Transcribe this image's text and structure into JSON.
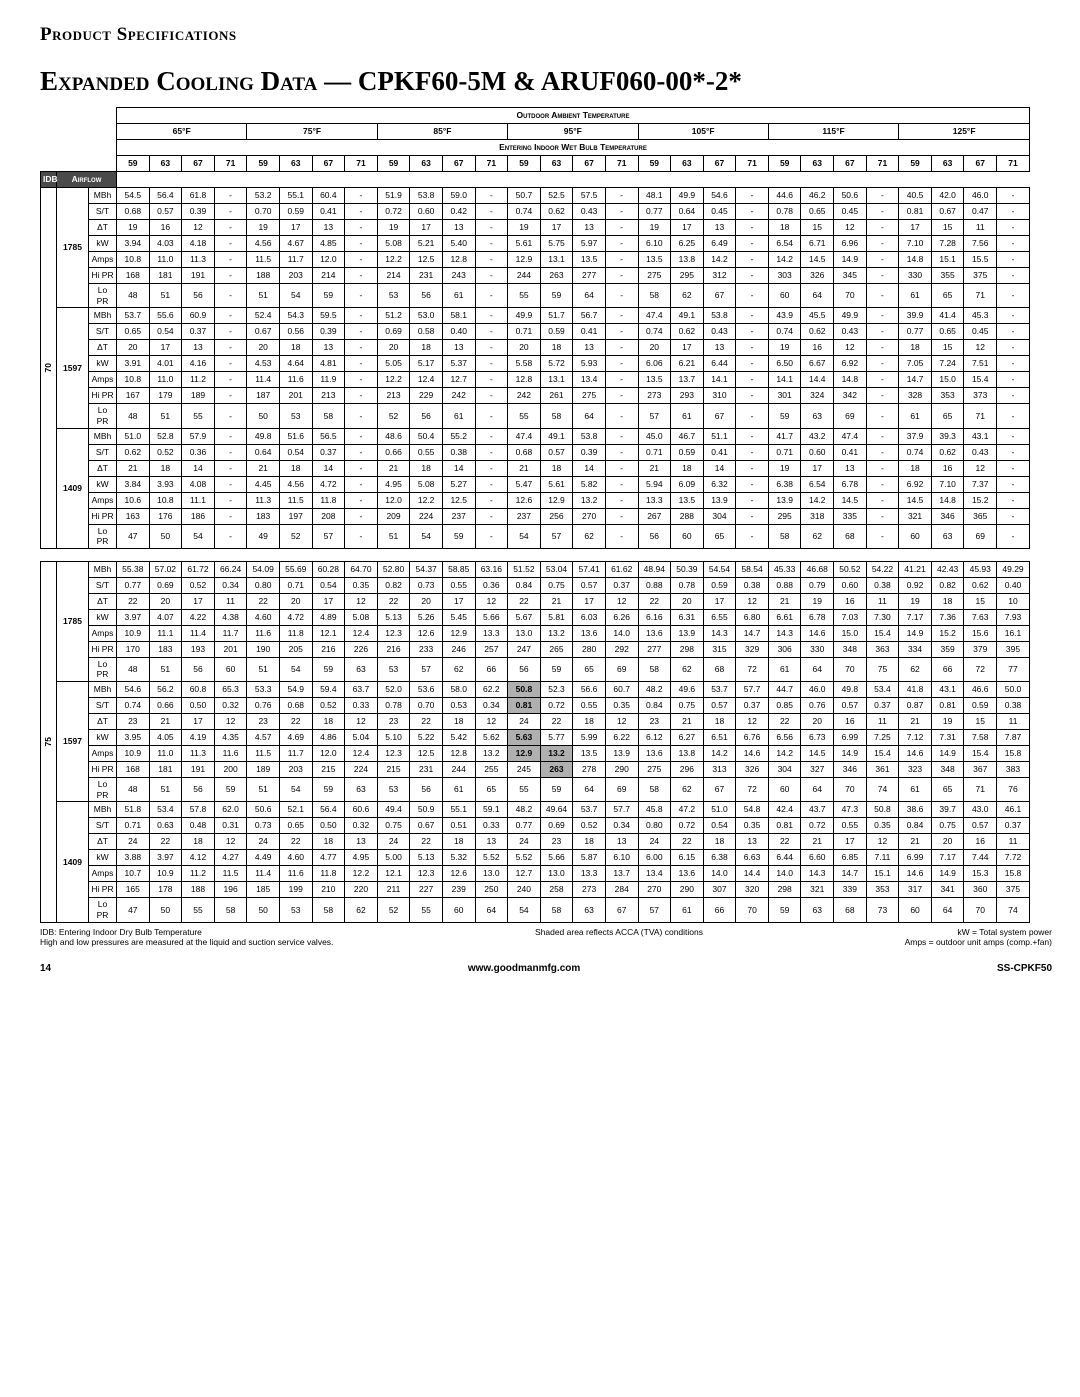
{
  "page_header": "Product Specifications",
  "title": "Expanded Cooling Data — CPKF60-5M & ARUF060-00*-2*",
  "footer_page": "14",
  "footer_site": "www.goodmanmfg.com",
  "footer_model": "SS-CPKF50",
  "outdoor_header": "Outdoor Ambient Temperature",
  "temps": [
    "65°F",
    "75°F",
    "85°F",
    "95°F",
    "105°F",
    "115°F",
    "125°F"
  ],
  "wet_header": "Entering Indoor Wet Bulb Temperature",
  "sub": [
    "59",
    "63",
    "67",
    "71"
  ],
  "rowlabels": [
    "MBh",
    "S/T",
    "ΔT",
    "kW",
    "Amps",
    "Hi PR",
    "Lo PR"
  ],
  "airflows": [
    "1785",
    "1597",
    "1409"
  ],
  "idb1": "70",
  "idb2": "75",
  "notes_left1": "IDB: Entering Indoor Dry Bulb Temperature",
  "notes_left2": "High and low pressures are measured at the liquid and suction service valves.",
  "notes_mid": "Shaded area reflects ACCA (TVA) conditions",
  "notes_right1": "kW = Total system power",
  "notes_right2": "Amps = outdoor unit amps (comp.+fan)",
  "colors": {
    "dark": "#4a4a4a",
    "shade": "#b0b0b0"
  },
  "t70": [
    [
      [
        "54.5",
        "56.4",
        "61.8",
        "-",
        "53.2",
        "55.1",
        "60.4",
        "-",
        "51.9",
        "53.8",
        "59.0",
        "-",
        "50.7",
        "52.5",
        "57.5",
        "-",
        "48.1",
        "49.9",
        "54.6",
        "-",
        "44.6",
        "46.2",
        "50.6",
        "-",
        "40.5",
        "42.0",
        "46.0",
        "-"
      ],
      [
        "0.68",
        "0.57",
        "0.39",
        "-",
        "0.70",
        "0.59",
        "0.41",
        "-",
        "0.72",
        "0.60",
        "0.42",
        "-",
        "0.74",
        "0.62",
        "0.43",
        "-",
        "0.77",
        "0.64",
        "0.45",
        "-",
        "0.78",
        "0.65",
        "0.45",
        "-",
        "0.81",
        "0.67",
        "0.47",
        "-"
      ],
      [
        "19",
        "16",
        "12",
        "-",
        "19",
        "17",
        "13",
        "-",
        "19",
        "17",
        "13",
        "-",
        "19",
        "17",
        "13",
        "-",
        "19",
        "17",
        "13",
        "-",
        "18",
        "15",
        "12",
        "-",
        "17",
        "15",
        "11",
        "-"
      ],
      [
        "3.94",
        "4.03",
        "4.18",
        "-",
        "4.56",
        "4.67",
        "4.85",
        "-",
        "5.08",
        "5.21",
        "5.40",
        "-",
        "5.61",
        "5.75",
        "5.97",
        "-",
        "6.10",
        "6.25",
        "6.49",
        "-",
        "6.54",
        "6.71",
        "6.96",
        "-",
        "7.10",
        "7.28",
        "7.56",
        "-"
      ],
      [
        "10.8",
        "11.0",
        "11.3",
        "-",
        "11.5",
        "11.7",
        "12.0",
        "-",
        "12.2",
        "12.5",
        "12.8",
        "-",
        "12.9",
        "13.1",
        "13.5",
        "-",
        "13.5",
        "13.8",
        "14.2",
        "-",
        "14.2",
        "14.5",
        "14.9",
        "-",
        "14.8",
        "15.1",
        "15.5",
        "-"
      ],
      [
        "168",
        "181",
        "191",
        "-",
        "188",
        "203",
        "214",
        "-",
        "214",
        "231",
        "243",
        "-",
        "244",
        "263",
        "277",
        "-",
        "275",
        "295",
        "312",
        "-",
        "303",
        "326",
        "345",
        "-",
        "330",
        "355",
        "375",
        "-"
      ],
      [
        "48",
        "51",
        "56",
        "-",
        "51",
        "54",
        "59",
        "-",
        "53",
        "56",
        "61",
        "-",
        "55",
        "59",
        "64",
        "-",
        "58",
        "62",
        "67",
        "-",
        "60",
        "64",
        "70",
        "-",
        "61",
        "65",
        "71",
        "-"
      ]
    ],
    [
      [
        "53.7",
        "55.6",
        "60.9",
        "-",
        "52.4",
        "54.3",
        "59.5",
        "-",
        "51.2",
        "53.0",
        "58.1",
        "-",
        "49.9",
        "51.7",
        "56.7",
        "-",
        "47.4",
        "49.1",
        "53.8",
        "-",
        "43.9",
        "45.5",
        "49.9",
        "-",
        "39.9",
        "41.4",
        "45.3",
        "-"
      ],
      [
        "0.65",
        "0.54",
        "0.37",
        "-",
        "0.67",
        "0.56",
        "0.39",
        "-",
        "0.69",
        "0.58",
        "0.40",
        "-",
        "0.71",
        "0.59",
        "0.41",
        "-",
        "0.74",
        "0.62",
        "0.43",
        "-",
        "0.74",
        "0.62",
        "0.43",
        "-",
        "0.77",
        "0.65",
        "0.45",
        "-"
      ],
      [
        "20",
        "17",
        "13",
        "-",
        "20",
        "18",
        "13",
        "-",
        "20",
        "18",
        "13",
        "-",
        "20",
        "18",
        "13",
        "-",
        "20",
        "17",
        "13",
        "-",
        "19",
        "16",
        "12",
        "-",
        "18",
        "15",
        "12",
        "-"
      ],
      [
        "3.91",
        "4.01",
        "4.16",
        "-",
        "4.53",
        "4.64",
        "4.81",
        "-",
        "5.05",
        "5.17",
        "5.37",
        "-",
        "5.58",
        "5.72",
        "5.93",
        "-",
        "6.06",
        "6.21",
        "6.44",
        "-",
        "6.50",
        "6.67",
        "6.92",
        "-",
        "7.05",
        "7.24",
        "7.51",
        "-"
      ],
      [
        "10.8",
        "11.0",
        "11.2",
        "-",
        "11.4",
        "11.6",
        "11.9",
        "-",
        "12.2",
        "12.4",
        "12.7",
        "-",
        "12.8",
        "13.1",
        "13.4",
        "-",
        "13.5",
        "13.7",
        "14.1",
        "-",
        "14.1",
        "14.4",
        "14.8",
        "-",
        "14.7",
        "15.0",
        "15.4",
        "-"
      ],
      [
        "167",
        "179",
        "189",
        "-",
        "187",
        "201",
        "213",
        "-",
        "213",
        "229",
        "242",
        "-",
        "242",
        "261",
        "275",
        "-",
        "273",
        "293",
        "310",
        "-",
        "301",
        "324",
        "342",
        "-",
        "328",
        "353",
        "373",
        "-"
      ],
      [
        "48",
        "51",
        "55",
        "-",
        "50",
        "53",
        "58",
        "-",
        "52",
        "56",
        "61",
        "-",
        "55",
        "58",
        "64",
        "-",
        "57",
        "61",
        "67",
        "-",
        "59",
        "63",
        "69",
        "-",
        "61",
        "65",
        "71",
        "-"
      ]
    ],
    [
      [
        "51.0",
        "52.8",
        "57.9",
        "-",
        "49.8",
        "51.6",
        "56.5",
        "-",
        "48.6",
        "50.4",
        "55.2",
        "-",
        "47.4",
        "49.1",
        "53.8",
        "-",
        "45.0",
        "46.7",
        "51.1",
        "-",
        "41.7",
        "43.2",
        "47.4",
        "-",
        "37.9",
        "39.3",
        "43.1",
        "-"
      ],
      [
        "0.62",
        "0.52",
        "0.36",
        "-",
        "0.64",
        "0.54",
        "0.37",
        "-",
        "0.66",
        "0.55",
        "0.38",
        "-",
        "0.68",
        "0.57",
        "0.39",
        "-",
        "0.71",
        "0.59",
        "0.41",
        "-",
        "0.71",
        "0.60",
        "0.41",
        "-",
        "0.74",
        "0.62",
        "0.43",
        "-"
      ],
      [
        "21",
        "18",
        "14",
        "-",
        "21",
        "18",
        "14",
        "-",
        "21",
        "18",
        "14",
        "-",
        "21",
        "18",
        "14",
        "-",
        "21",
        "18",
        "14",
        "-",
        "19",
        "17",
        "13",
        "-",
        "18",
        "16",
        "12",
        "-"
      ],
      [
        "3.84",
        "3.93",
        "4.08",
        "-",
        "4.45",
        "4.56",
        "4.72",
        "-",
        "4.95",
        "5.08",
        "5.27",
        "-",
        "5.47",
        "5.61",
        "5.82",
        "-",
        "5.94",
        "6.09",
        "6.32",
        "-",
        "6.38",
        "6.54",
        "6.78",
        "-",
        "6.92",
        "7.10",
        "7.37",
        "-"
      ],
      [
        "10.6",
        "10.8",
        "11.1",
        "-",
        "11.3",
        "11.5",
        "11.8",
        "-",
        "12.0",
        "12.2",
        "12.5",
        "-",
        "12.6",
        "12.9",
        "13.2",
        "-",
        "13.3",
        "13.5",
        "13.9",
        "-",
        "13.9",
        "14.2",
        "14.5",
        "-",
        "14.5",
        "14.8",
        "15.2",
        "-"
      ],
      [
        "163",
        "176",
        "186",
        "-",
        "183",
        "197",
        "208",
        "-",
        "209",
        "224",
        "237",
        "-",
        "237",
        "256",
        "270",
        "-",
        "267",
        "288",
        "304",
        "-",
        "295",
        "318",
        "335",
        "-",
        "321",
        "346",
        "365",
        "-"
      ],
      [
        "47",
        "50",
        "54",
        "-",
        "49",
        "52",
        "57",
        "-",
        "51",
        "54",
        "59",
        "-",
        "54",
        "57",
        "62",
        "-",
        "56",
        "60",
        "65",
        "-",
        "58",
        "62",
        "68",
        "-",
        "60",
        "63",
        "69",
        "-"
      ]
    ]
  ],
  "t75": [
    [
      [
        "55.38",
        "57.02",
        "61.72",
        "66.24",
        "54.09",
        "55.69",
        "60.28",
        "64.70",
        "52.80",
        "54.37",
        "58.85",
        "63.16",
        "51.52",
        "53.04",
        "57.41",
        "61.62",
        "48.94",
        "50.39",
        "54.54",
        "58.54",
        "45.33",
        "46.68",
        "50.52",
        "54.22",
        "41.21",
        "42.43",
        "45.93",
        "49.29"
      ],
      [
        "0.77",
        "0.69",
        "0.52",
        "0.34",
        "0.80",
        "0.71",
        "0.54",
        "0.35",
        "0.82",
        "0.73",
        "0.55",
        "0.36",
        "0.84",
        "0.75",
        "0.57",
        "0.37",
        "0.88",
        "0.78",
        "0.59",
        "0.38",
        "0.88",
        "0.79",
        "0.60",
        "0.38",
        "0.92",
        "0.82",
        "0.62",
        "0.40"
      ],
      [
        "22",
        "20",
        "17",
        "11",
        "22",
        "20",
        "17",
        "12",
        "22",
        "20",
        "17",
        "12",
        "22",
        "21",
        "17",
        "12",
        "22",
        "20",
        "17",
        "12",
        "21",
        "19",
        "16",
        "11",
        "19",
        "18",
        "15",
        "10"
      ],
      [
        "3.97",
        "4.07",
        "4.22",
        "4.38",
        "4.60",
        "4.72",
        "4.89",
        "5.08",
        "5.13",
        "5.26",
        "5.45",
        "5.66",
        "5.67",
        "5.81",
        "6.03",
        "6.26",
        "6.16",
        "6.31",
        "6.55",
        "6.80",
        "6.61",
        "6.78",
        "7.03",
        "7.30",
        "7.17",
        "7.36",
        "7.63",
        "7.93"
      ],
      [
        "10.9",
        "11.1",
        "11.4",
        "11.7",
        "11.6",
        "11.8",
        "12.1",
        "12.4",
        "12.3",
        "12.6",
        "12.9",
        "13.3",
        "13.0",
        "13.2",
        "13.6",
        "14.0",
        "13.6",
        "13.9",
        "14.3",
        "14.7",
        "14.3",
        "14.6",
        "15.0",
        "15.4",
        "14.9",
        "15.2",
        "15.6",
        "16.1"
      ],
      [
        "170",
        "183",
        "193",
        "201",
        "190",
        "205",
        "216",
        "226",
        "216",
        "233",
        "246",
        "257",
        "247",
        "265",
        "280",
        "292",
        "277",
        "298",
        "315",
        "329",
        "306",
        "330",
        "348",
        "363",
        "334",
        "359",
        "379",
        "395"
      ],
      [
        "48",
        "51",
        "56",
        "60",
        "51",
        "54",
        "59",
        "63",
        "53",
        "57",
        "62",
        "66",
        "56",
        "59",
        "65",
        "69",
        "58",
        "62",
        "68",
        "72",
        "61",
        "64",
        "70",
        "75",
        "62",
        "66",
        "72",
        "77"
      ]
    ],
    [
      [
        "54.6",
        "56.2",
        "60.8",
        "65.3",
        "53.3",
        "54.9",
        "59.4",
        "63.7",
        "52.0",
        "53.6",
        "58.0",
        "62.2",
        "50.8",
        "52.3",
        "56.6",
        "60.7",
        "48.2",
        "49.6",
        "53.7",
        "57.7",
        "44.7",
        "46.0",
        "49.8",
        "53.4",
        "41.8",
        "43.1",
        "46.6",
        "50.0"
      ],
      [
        "0.74",
        "0.66",
        "0.50",
        "0.32",
        "0.76",
        "0.68",
        "0.52",
        "0.33",
        "0.78",
        "0.70",
        "0.53",
        "0.34",
        "0.81",
        "0.72",
        "0.55",
        "0.35",
        "0.84",
        "0.75",
        "0.57",
        "0.37",
        "0.85",
        "0.76",
        "0.57",
        "0.37",
        "0.87",
        "0.81",
        "0.59",
        "0.38"
      ],
      [
        "23",
        "21",
        "17",
        "12",
        "23",
        "22",
        "18",
        "12",
        "23",
        "22",
        "18",
        "12",
        "24",
        "22",
        "18",
        "12",
        "23",
        "21",
        "18",
        "12",
        "22",
        "20",
        "16",
        "11",
        "21",
        "19",
        "15",
        "11"
      ],
      [
        "3.95",
        "4.05",
        "4.19",
        "4.35",
        "4.57",
        "4.69",
        "4.86",
        "5.04",
        "5.10",
        "5.22",
        "5.42",
        "5.62",
        "5.63",
        "5.77",
        "5.99",
        "6.22",
        "6.12",
        "6.27",
        "6.51",
        "6.76",
        "6.56",
        "6.73",
        "6.99",
        "7.25",
        "7.12",
        "7.31",
        "7.58",
        "7.87"
      ],
      [
        "10.9",
        "11.0",
        "11.3",
        "11.6",
        "11.5",
        "11.7",
        "12.0",
        "12.4",
        "12.3",
        "12.5",
        "12.8",
        "13.2",
        "12.9",
        "13.2",
        "13.5",
        "13.9",
        "13.6",
        "13.8",
        "14.2",
        "14.6",
        "14.2",
        "14.5",
        "14.9",
        "15.4",
        "14.6",
        "14.9",
        "15.4",
        "15.8"
      ],
      [
        "168",
        "181",
        "191",
        "200",
        "189",
        "203",
        "215",
        "224",
        "215",
        "231",
        "244",
        "255",
        "245",
        "263",
        "278",
        "290",
        "275",
        "296",
        "313",
        "326",
        "304",
        "327",
        "346",
        "361",
        "323",
        "348",
        "367",
        "383"
      ],
      [
        "48",
        "51",
        "56",
        "59",
        "51",
        "54",
        "59",
        "63",
        "53",
        "56",
        "61",
        "65",
        "55",
        "59",
        "64",
        "69",
        "58",
        "62",
        "67",
        "72",
        "60",
        "64",
        "70",
        "74",
        "61",
        "65",
        "71",
        "76"
      ]
    ],
    [
      [
        "51.8",
        "53.4",
        "57.8",
        "62.0",
        "50.6",
        "52.1",
        "56.4",
        "60.6",
        "49.4",
        "50.9",
        "55.1",
        "59.1",
        "48.2",
        "49.64",
        "53.7",
        "57.7",
        "45.8",
        "47.2",
        "51.0",
        "54.8",
        "42.4",
        "43.7",
        "47.3",
        "50.8",
        "38.6",
        "39.7",
        "43.0",
        "46.1"
      ],
      [
        "0.71",
        "0.63",
        "0.48",
        "0.31",
        "0.73",
        "0.65",
        "0.50",
        "0.32",
        "0.75",
        "0.67",
        "0.51",
        "0.33",
        "0.77",
        "0.69",
        "0.52",
        "0.34",
        "0.80",
        "0.72",
        "0.54",
        "0.35",
        "0.81",
        "0.72",
        "0.55",
        "0.35",
        "0.84",
        "0.75",
        "0.57",
        "0.37"
      ],
      [
        "24",
        "22",
        "18",
        "12",
        "24",
        "22",
        "18",
        "13",
        "24",
        "22",
        "18",
        "13",
        "24",
        "23",
        "18",
        "13",
        "24",
        "22",
        "18",
        "13",
        "22",
        "21",
        "17",
        "12",
        "21",
        "20",
        "16",
        "11"
      ],
      [
        "3.88",
        "3.97",
        "4.12",
        "4.27",
        "4.49",
        "4.60",
        "4.77",
        "4.95",
        "5.00",
        "5.13",
        "5.32",
        "5.52",
        "5.52",
        "5.66",
        "5.87",
        "6.10",
        "6.00",
        "6.15",
        "6.38",
        "6.63",
        "6.44",
        "6.60",
        "6.85",
        "7.11",
        "6.99",
        "7.17",
        "7.44",
        "7.72"
      ],
      [
        "10.7",
        "10.9",
        "11.2",
        "11.5",
        "11.4",
        "11.6",
        "11.8",
        "12.2",
        "12.1",
        "12.3",
        "12.6",
        "13.0",
        "12.7",
        "13.0",
        "13.3",
        "13.7",
        "13.4",
        "13.6",
        "14.0",
        "14.4",
        "14.0",
        "14.3",
        "14.7",
        "15.1",
        "14.6",
        "14.9",
        "15.3",
        "15.8"
      ],
      [
        "165",
        "178",
        "188",
        "196",
        "185",
        "199",
        "210",
        "220",
        "211",
        "227",
        "239",
        "250",
        "240",
        "258",
        "273",
        "284",
        "270",
        "290",
        "307",
        "320",
        "298",
        "321",
        "339",
        "353",
        "317",
        "341",
        "360",
        "375"
      ],
      [
        "47",
        "50",
        "55",
        "58",
        "50",
        "53",
        "58",
        "62",
        "52",
        "55",
        "60",
        "64",
        "54",
        "58",
        "63",
        "67",
        "57",
        "61",
        "66",
        "70",
        "59",
        "63",
        "68",
        "73",
        "60",
        "64",
        "70",
        "74"
      ]
    ]
  ],
  "shaded": {
    "block": 1,
    "airflow": 1,
    "rows": [
      [
        0,
        12
      ],
      [
        1,
        12
      ],
      [
        3,
        12
      ],
      [
        4,
        12
      ],
      [
        4,
        13
      ],
      [
        5,
        13
      ]
    ]
  },
  "head": [
    "IDB",
    "Airflow"
  ]
}
